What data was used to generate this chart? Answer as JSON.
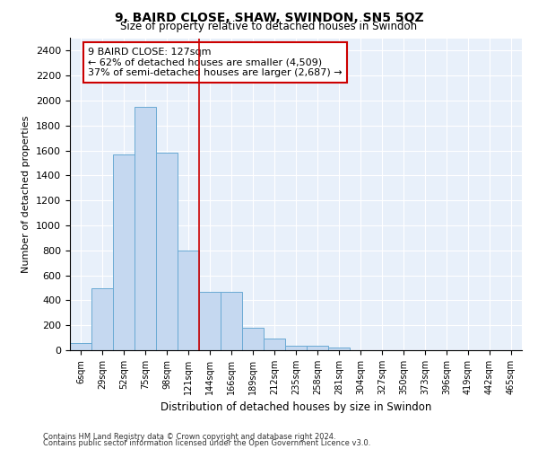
{
  "title1": "9, BAIRD CLOSE, SHAW, SWINDON, SN5 5QZ",
  "title2": "Size of property relative to detached houses in Swindon",
  "xlabel": "Distribution of detached houses by size in Swindon",
  "ylabel": "Number of detached properties",
  "footnote1": "Contains HM Land Registry data © Crown copyright and database right 2024.",
  "footnote2": "Contains public sector information licensed under the Open Government Licence v3.0.",
  "annotation_line1": "9 BAIRD CLOSE: 127sqm",
  "annotation_line2": "← 62% of detached houses are smaller (4,509)",
  "annotation_line3": "37% of semi-detached houses are larger (2,687) →",
  "bar_labels": [
    "6sqm",
    "29sqm",
    "52sqm",
    "75sqm",
    "98sqm",
    "121sqm",
    "144sqm",
    "166sqm",
    "189sqm",
    "212sqm",
    "235sqm",
    "258sqm",
    "281sqm",
    "304sqm",
    "327sqm",
    "350sqm",
    "373sqm",
    "396sqm",
    "419sqm",
    "442sqm",
    "465sqm"
  ],
  "bar_values": [
    60,
    500,
    1570,
    1950,
    1580,
    800,
    470,
    470,
    180,
    90,
    35,
    35,
    25,
    0,
    0,
    0,
    0,
    0,
    0,
    0,
    0
  ],
  "bar_color": "#c5d8f0",
  "bar_edge_color": "#6aaad4",
  "vline_color": "#cc0000",
  "vline_position": 5.5,
  "ylim": [
    0,
    2500
  ],
  "yticks": [
    0,
    200,
    400,
    600,
    800,
    1000,
    1200,
    1400,
    1600,
    1800,
    2000,
    2200,
    2400
  ],
  "axes_background": "#e8f0fa",
  "grid_color": "#ffffff",
  "annotation_box_facecolor": "#ffffff",
  "annotation_box_edgecolor": "#cc0000"
}
